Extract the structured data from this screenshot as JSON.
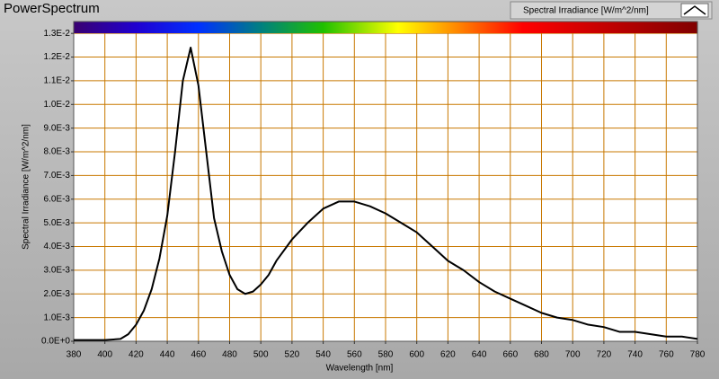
{
  "chart_data": {
    "type": "line",
    "title": "PowerSpectrum",
    "x_label": "Wavelength [nm]",
    "y_label": "Spectral Irradiance [W/m^2/nm]",
    "x": [
      380,
      400,
      410,
      415,
      420,
      425,
      430,
      435,
      440,
      445,
      450,
      455,
      460,
      465,
      470,
      475,
      480,
      485,
      490,
      495,
      500,
      505,
      510,
      520,
      530,
      540,
      550,
      560,
      570,
      580,
      590,
      600,
      610,
      620,
      630,
      640,
      650,
      660,
      670,
      680,
      690,
      700,
      710,
      720,
      730,
      740,
      750,
      760,
      770,
      780
    ],
    "series": [
      {
        "name": "Spectral Irradiance [W/m^2/nm]",
        "color": "#000000",
        "values": [
          5e-05,
          5e-05,
          0.0001,
          0.0003,
          0.0007,
          0.0013,
          0.0022,
          0.0035,
          0.0053,
          0.008,
          0.011,
          0.0124,
          0.0108,
          0.008,
          0.0052,
          0.0038,
          0.0028,
          0.0022,
          0.002,
          0.0021,
          0.0024,
          0.0028,
          0.0034,
          0.0043,
          0.005,
          0.0056,
          0.0059,
          0.0059,
          0.0057,
          0.0054,
          0.005,
          0.0046,
          0.004,
          0.0034,
          0.003,
          0.0025,
          0.0021,
          0.0018,
          0.0015,
          0.0012,
          0.001,
          0.0009,
          0.0007,
          0.0006,
          0.0004,
          0.0004,
          0.0003,
          0.0002,
          0.0002,
          0.0001
        ]
      }
    ],
    "xlim": [
      380,
      780
    ],
    "ylim": [
      0,
      0.0135
    ],
    "xticks": [
      380,
      400,
      420,
      440,
      460,
      480,
      500,
      520,
      540,
      560,
      580,
      600,
      620,
      640,
      660,
      680,
      700,
      720,
      740,
      760,
      780
    ],
    "yticks": [
      {
        "value": 0,
        "label": "0.0E+0"
      },
      {
        "value": 0.001,
        "label": "1.0E-3"
      },
      {
        "value": 0.002,
        "label": "2.0E-3"
      },
      {
        "value": 0.003,
        "label": "3.0E-3"
      },
      {
        "value": 0.004,
        "label": "4.0E-3"
      },
      {
        "value": 0.005,
        "label": "5.0E-3"
      },
      {
        "value": 0.006,
        "label": "6.0E-3"
      },
      {
        "value": 0.007,
        "label": "7.0E-3"
      },
      {
        "value": 0.008,
        "label": "8.0E-3"
      },
      {
        "value": 0.009,
        "label": "9.0E-3"
      },
      {
        "value": 0.01,
        "label": "1.0E-2"
      },
      {
        "value": 0.011,
        "label": "1.1E-2"
      },
      {
        "value": 0.012,
        "label": "1.2E-2"
      },
      {
        "value": 0.013,
        "label": "1.3E-2"
      }
    ],
    "grid": true,
    "grid_color": "#c87800",
    "legend": "top-right"
  }
}
